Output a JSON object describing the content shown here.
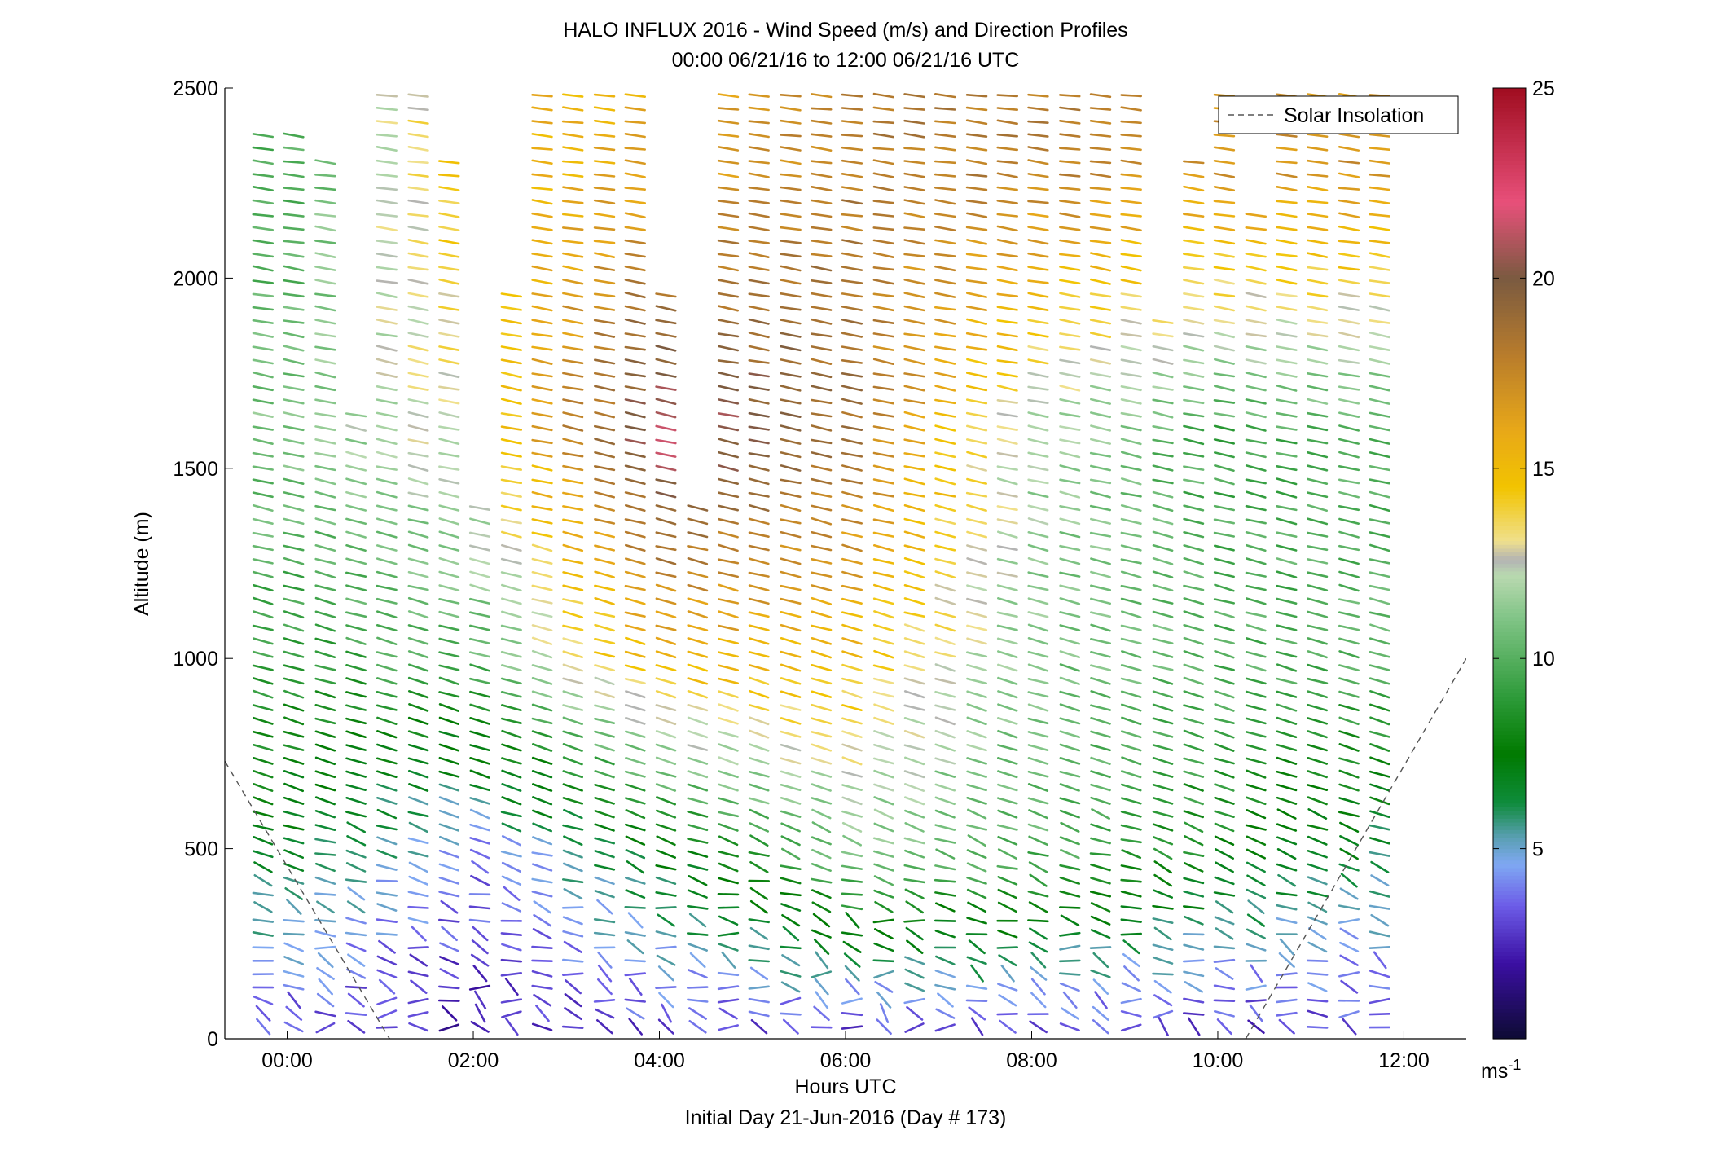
{
  "chart_data": {
    "type": "wind-barb-profile",
    "title_line1": "HALO INFLUX 2016 - Wind Speed (m/s) and Direction Profiles",
    "title_line2": "00:00 06/21/16 to 12:00 06/21/16  UTC",
    "xlabel": "Hours UTC",
    "xlabel2": "Initial Day 21-Jun-2016 (Day # 173)",
    "ylabel": "Altitude (m)",
    "xlim": [
      -0.67,
      12.67
    ],
    "ylim": [
      0,
      2500
    ],
    "x_ticks": [
      0,
      2,
      4,
      6,
      8,
      10,
      12
    ],
    "x_tick_labels": [
      "00:00",
      "02:00",
      "04:00",
      "06:00",
      "08:00",
      "10:00",
      "12:00"
    ],
    "y_ticks": [
      0,
      500,
      1000,
      1500,
      2000,
      2500
    ],
    "y_tick_labels": [
      "0",
      "500",
      "1000",
      "1500",
      "2000",
      "2500"
    ],
    "legend": {
      "label": "Solar Insolation",
      "placement": "top-right"
    },
    "solar_insolation_line": {
      "morning": [
        [
          -0.67,
          730
        ],
        [
          1.1,
          0
        ]
      ],
      "evening": [
        [
          10.3,
          0
        ],
        [
          12.67,
          1000
        ]
      ]
    },
    "colorbar": {
      "range": [
        0,
        25
      ],
      "ticks": [
        5,
        10,
        15,
        20,
        25
      ],
      "tick_labels": [
        "5",
        "10",
        "15",
        "20",
        "25"
      ],
      "unit": "ms",
      "unit_exp": "-1",
      "stops": [
        {
          "v": 0,
          "c": "#0d0b33"
        },
        {
          "v": 2,
          "c": "#3b0fa3"
        },
        {
          "v": 3.5,
          "c": "#6c5ce7"
        },
        {
          "v": 4.6,
          "c": "#7fa8f2"
        },
        {
          "v": 5.3,
          "c": "#5a9fb3"
        },
        {
          "v": 6.2,
          "c": "#0f8c3c"
        },
        {
          "v": 7.5,
          "c": "#007a00"
        },
        {
          "v": 9,
          "c": "#2e9b3a"
        },
        {
          "v": 11,
          "c": "#7ec384"
        },
        {
          "v": 12.2,
          "c": "#b9d9b0"
        },
        {
          "v": 12.6,
          "c": "#b3b3b3"
        },
        {
          "v": 13.1,
          "c": "#f0e08c"
        },
        {
          "v": 14.5,
          "c": "#f2c400"
        },
        {
          "v": 16,
          "c": "#e8a818"
        },
        {
          "v": 18,
          "c": "#b87c2c"
        },
        {
          "v": 20,
          "c": "#7a5a40"
        },
        {
          "v": 22,
          "c": "#e8507a"
        },
        {
          "v": 25,
          "c": "#a00d20"
        }
      ]
    },
    "profile_times_hours": [
      -0.25,
      0.08,
      0.42,
      0.75,
      1.08,
      1.42,
      1.75,
      2.08,
      2.42,
      2.75,
      3.08,
      3.42,
      3.75,
      4.08,
      4.42,
      4.75,
      5.08,
      5.42,
      5.75,
      6.08,
      6.42,
      6.75,
      7.08,
      7.42,
      7.75,
      8.08,
      8.42,
      8.75,
      9.08,
      9.42,
      9.75,
      10.08,
      10.42,
      10.75,
      11.08,
      11.42,
      11.75
    ],
    "profile_top_m": [
      2380,
      2380,
      2330,
      1670,
      2500,
      2500,
      2330,
      1420,
      1960,
      2500,
      2500,
      2500,
      2500,
      1980,
      1420,
      2500,
      2500,
      2500,
      2500,
      2500,
      2500,
      2500,
      2500,
      2500,
      2500,
      2500,
      2500,
      2500,
      2500,
      1890,
      2330,
      2500,
      2170,
      2500,
      2500,
      2500,
      2500
    ],
    "gates_m": {
      "start": 30,
      "step": 35
    },
    "speed_model_m_s": {
      "near_surface": [
        [
          0,
          3
        ],
        [
          2,
          2
        ],
        [
          4,
          3
        ],
        [
          6,
          2.5
        ],
        [
          8,
          3
        ],
        [
          10,
          2.5
        ],
        [
          12,
          3
        ]
      ],
      "layer_500m": [
        [
          0,
          7
        ],
        [
          2,
          4
        ],
        [
          4,
          7
        ],
        [
          6,
          11
        ],
        [
          8,
          10
        ],
        [
          10,
          8
        ],
        [
          12,
          6
        ]
      ],
      "layer_1000m": [
        [
          0,
          9
        ],
        [
          2,
          10
        ],
        [
          4,
          15.5
        ],
        [
          6,
          15
        ],
        [
          8,
          11
        ],
        [
          10,
          10
        ],
        [
          12,
          10
        ]
      ],
      "layer_1600m": [
        [
          0,
          11
        ],
        [
          2,
          13
        ],
        [
          4,
          21.5
        ],
        [
          6,
          19
        ],
        [
          8,
          12
        ],
        [
          10,
          9.5
        ],
        [
          12,
          10
        ]
      ],
      "layer_2300m": [
        [
          0,
          9.5
        ],
        [
          2,
          15
        ],
        [
          4,
          16
        ],
        [
          6,
          18
        ],
        [
          8,
          18
        ],
        [
          10,
          17
        ],
        [
          12,
          17
        ]
      ]
    }
  }
}
